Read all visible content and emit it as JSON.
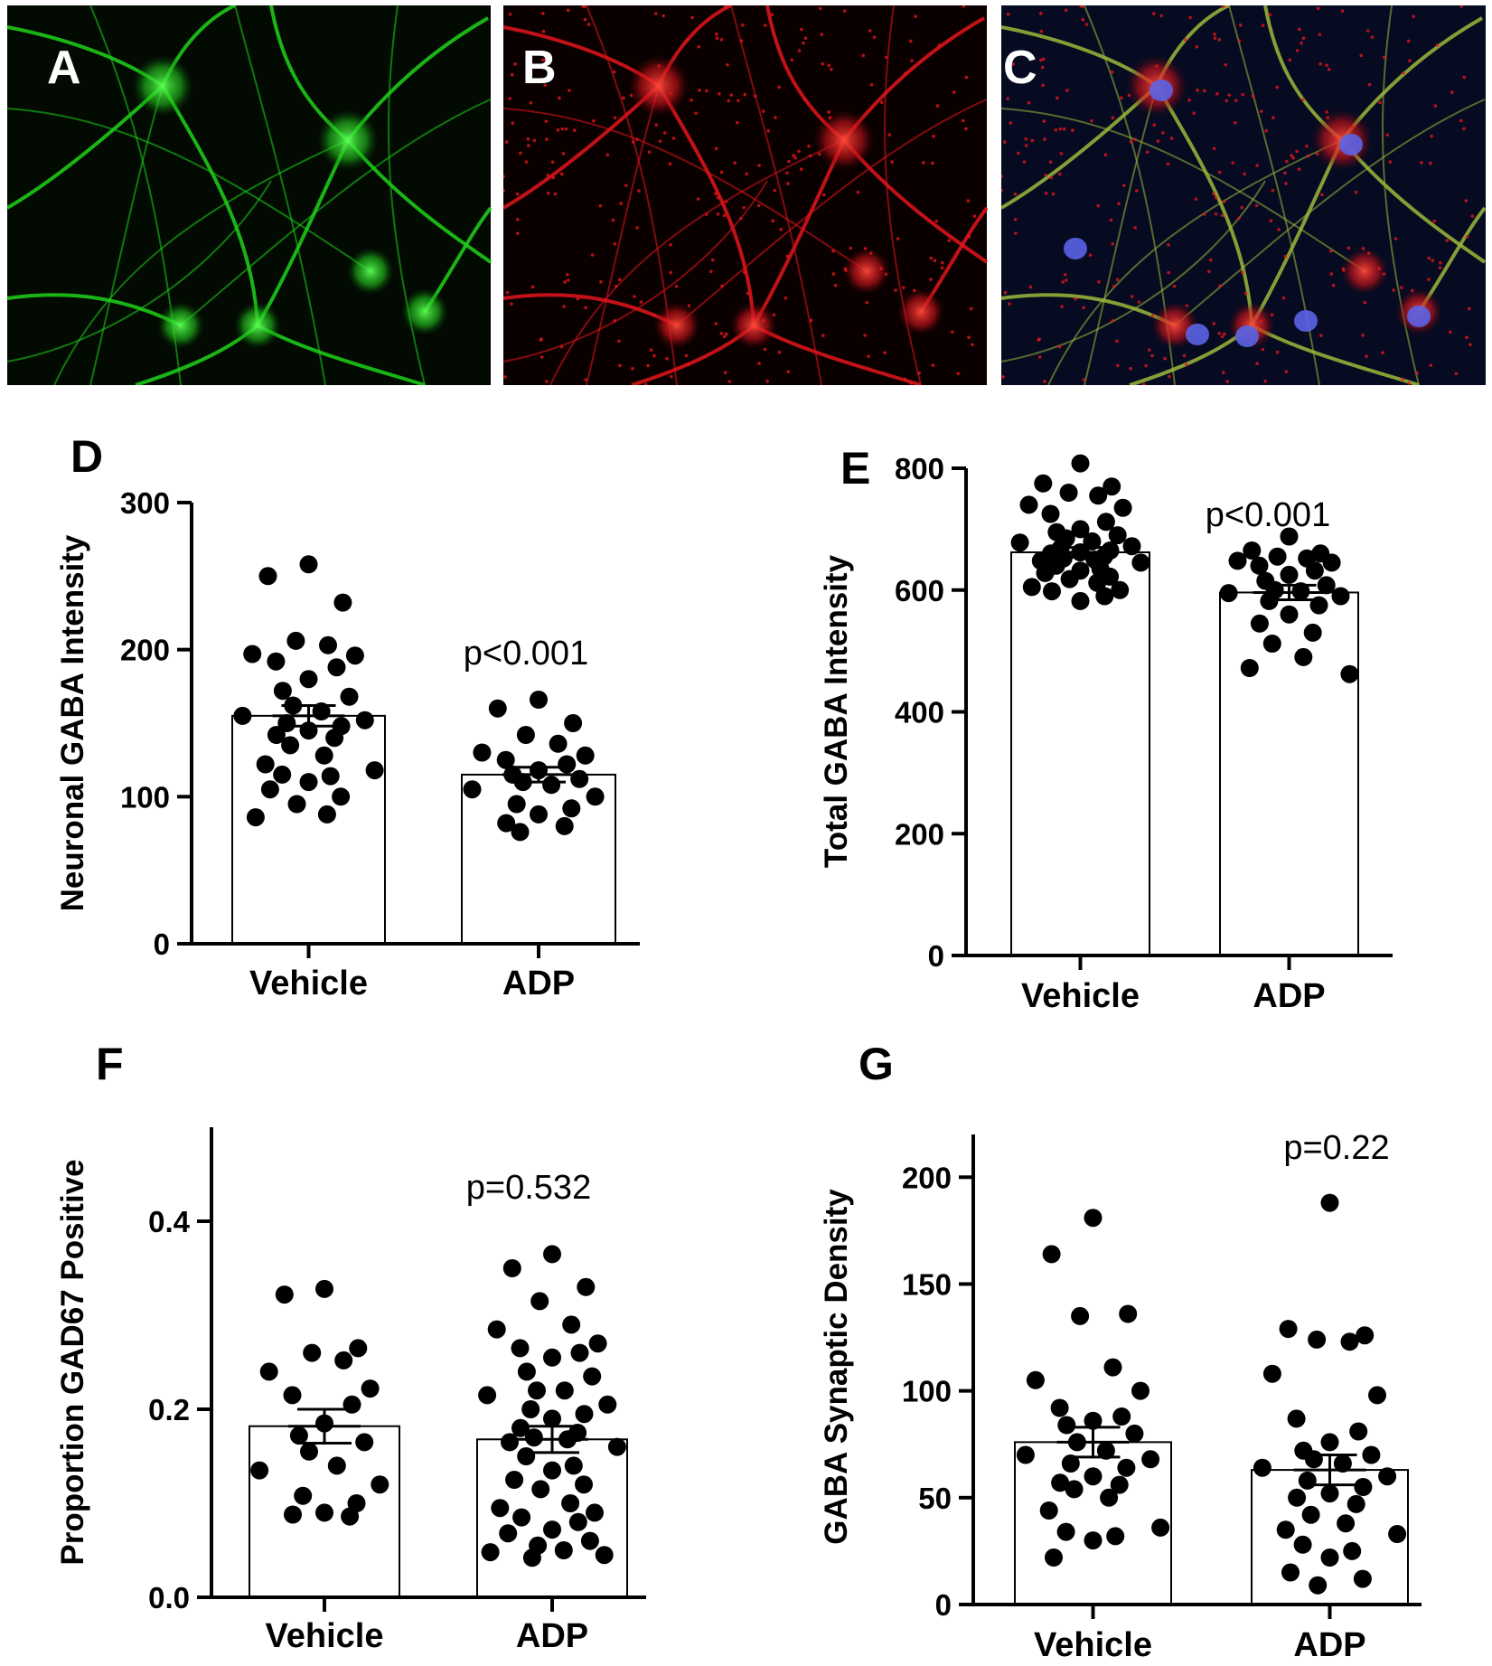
{
  "images": [
    {
      "letter": "A",
      "channel": "green"
    },
    {
      "letter": "B",
      "channel": "red"
    },
    {
      "letter": "C",
      "channel": "merge"
    }
  ],
  "colors": {
    "green": "#1fd21a",
    "red": "#e3141b",
    "nucleus": "#5a63e6",
    "bar_fill": "#ffffff",
    "points": "#000000"
  },
  "chart_data": [
    {
      "panel": "D",
      "type": "bar",
      "categories": [
        "Vehicle",
        "ADP"
      ],
      "ylabel": "Neuronal GABA Intensity",
      "ylim": [
        0,
        300
      ],
      "yticks": [
        0,
        100,
        200,
        300
      ],
      "annotation": "p<0.001",
      "bars": [
        155,
        115
      ],
      "sem": [
        7,
        5
      ],
      "points": [
        [
          258,
          250,
          232,
          206,
          203,
          197,
          196,
          192,
          188,
          180,
          172,
          168,
          162,
          158,
          155,
          152,
          150,
          148,
          145,
          142,
          140,
          135,
          128,
          122,
          118,
          115,
          114,
          110,
          105,
          100,
          95,
          88,
          86
        ],
        [
          166,
          160,
          150,
          142,
          136,
          130,
          128,
          125,
          122,
          118,
          115,
          112,
          110,
          108,
          105,
          100,
          95,
          92,
          88,
          82,
          80,
          76
        ]
      ]
    },
    {
      "panel": "E",
      "type": "bar",
      "categories": [
        "Vehicle",
        "ADP"
      ],
      "ylabel": "Total GABA Intensity",
      "ylim": [
        0,
        800
      ],
      "yticks": [
        0,
        200,
        400,
        600,
        800
      ],
      "annotation": "p<0.001",
      "bars": [
        662,
        596
      ],
      "sem": [
        8,
        12
      ],
      "points": [
        [
          808,
          775,
          770,
          760,
          755,
          740,
          735,
          725,
          712,
          700,
          695,
          690,
          685,
          680,
          678,
          672,
          668,
          665,
          662,
          660,
          655,
          652,
          650,
          648,
          645,
          640,
          635,
          632,
          628,
          622,
          618,
          612,
          605,
          600,
          598,
          590,
          582
        ],
        [
          688,
          665,
          660,
          655,
          652,
          648,
          645,
          640,
          632,
          625,
          615,
          608,
          600,
          598,
          595,
          590,
          582,
          575,
          560,
          545,
          530,
          512,
          490,
          472,
          462
        ]
      ]
    },
    {
      "panel": "F",
      "type": "bar",
      "categories": [
        "Vehicle",
        "ADP"
      ],
      "ylabel": "Proportion GAD67 Positive",
      "ylim": [
        0,
        0.5
      ],
      "yticks": [
        "0.0",
        "0.2",
        "0.4"
      ],
      "ytick_values": [
        0,
        0.2,
        0.4
      ],
      "annotation": "p=0.532",
      "bars": [
        0.182,
        0.168
      ],
      "sem": [
        0.018,
        0.014
      ],
      "points": [
        [
          0.328,
          0.322,
          0.265,
          0.26,
          0.252,
          0.24,
          0.222,
          0.215,
          0.205,
          0.185,
          0.172,
          0.165,
          0.155,
          0.14,
          0.135,
          0.12,
          0.108,
          0.1,
          0.09,
          0.088,
          0.086
        ],
        [
          0.365,
          0.35,
          0.33,
          0.315,
          0.29,
          0.285,
          0.27,
          0.265,
          0.26,
          0.255,
          0.24,
          0.235,
          0.22,
          0.22,
          0.215,
          0.205,
          0.2,
          0.195,
          0.19,
          0.18,
          0.175,
          0.17,
          0.168,
          0.165,
          0.16,
          0.15,
          0.14,
          0.135,
          0.125,
          0.12,
          0.115,
          0.1,
          0.095,
          0.09,
          0.085,
          0.08,
          0.072,
          0.068,
          0.06,
          0.055,
          0.05,
          0.048,
          0.045,
          0.042
        ]
      ]
    },
    {
      "panel": "G",
      "type": "bar",
      "categories": [
        "Vehicle",
        "ADP"
      ],
      "ylabel": "GABA Synaptic Density",
      "ylim": [
        0,
        220
      ],
      "yticks": [
        0,
        50,
        100,
        150,
        200
      ],
      "annotation": "p=0.22",
      "bars": [
        76,
        63
      ],
      "sem": [
        7,
        7
      ],
      "points": [
        [
          181,
          164,
          136,
          135,
          111,
          105,
          100,
          92,
          88,
          86,
          84,
          80,
          76,
          72,
          70,
          68,
          66,
          64,
          60,
          57,
          56,
          54,
          50,
          44,
          36,
          34,
          32,
          30,
          22
        ],
        [
          188,
          129,
          126,
          124,
          123,
          108,
          98,
          87,
          81,
          76,
          72,
          70,
          68,
          66,
          64,
          60,
          58,
          55,
          52,
          50,
          47,
          42,
          38,
          35,
          33,
          28,
          25,
          22,
          15,
          12,
          9
        ]
      ]
    }
  ]
}
